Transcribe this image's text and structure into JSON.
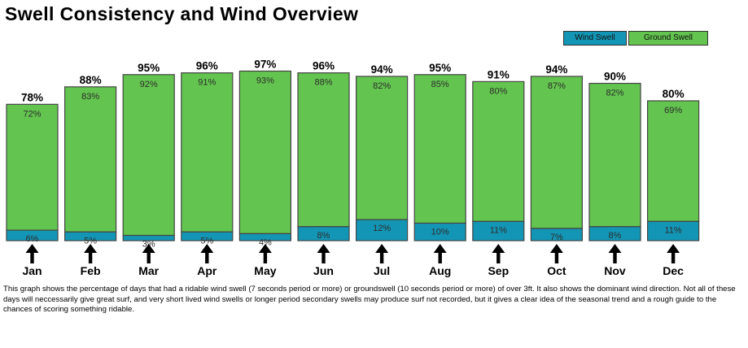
{
  "title": "Swell Consistency and Wind Overview",
  "legend": {
    "wind_swell": "Wind Swell",
    "ground_swell": "Ground Swell"
  },
  "colors": {
    "wind_swell": "#1396b5",
    "ground_swell": "#63c44f",
    "bar_border": "#444444",
    "arrow": "#000000"
  },
  "icons": {
    "wind_direction": "arrow-up-icon"
  },
  "chart_data": {
    "type": "bar",
    "stacked": true,
    "categories": [
      "Jan",
      "Feb",
      "Mar",
      "Apr",
      "May",
      "Jun",
      "Jul",
      "Aug",
      "Sep",
      "Oct",
      "Nov",
      "Dec"
    ],
    "totals": [
      78,
      88,
      95,
      96,
      97,
      96,
      94,
      95,
      91,
      94,
      90,
      80
    ],
    "series": [
      {
        "name": "Wind Swell",
        "values": [
          6,
          5,
          3,
          5,
          4,
          8,
          12,
          10,
          11,
          7,
          8,
          11
        ]
      },
      {
        "name": "Ground Swell",
        "values": [
          72,
          83,
          92,
          91,
          93,
          88,
          82,
          85,
          80,
          87,
          82,
          69
        ]
      }
    ],
    "value_suffix": "%",
    "ylim": [
      0,
      100
    ],
    "legend_position": "top-right",
    "grid": false,
    "wind_direction": [
      "up",
      "up",
      "up",
      "up",
      "up",
      "up",
      "up",
      "up",
      "up",
      "up",
      "up",
      "up"
    ]
  },
  "description": "This graph shows the percentage of days that had a ridable wind swell (7 seconds period or more) or groundswell (10 seconds period or more) of over 3ft. It also shows the dominant wind direction. Not all of these days will neccessarily give great surf, and very short lived wind swells or longer period secondary swells may produce surf not recorded, but it gives a clear idea of the seasonal trend and a rough guide to the chances of scoring something ridable."
}
